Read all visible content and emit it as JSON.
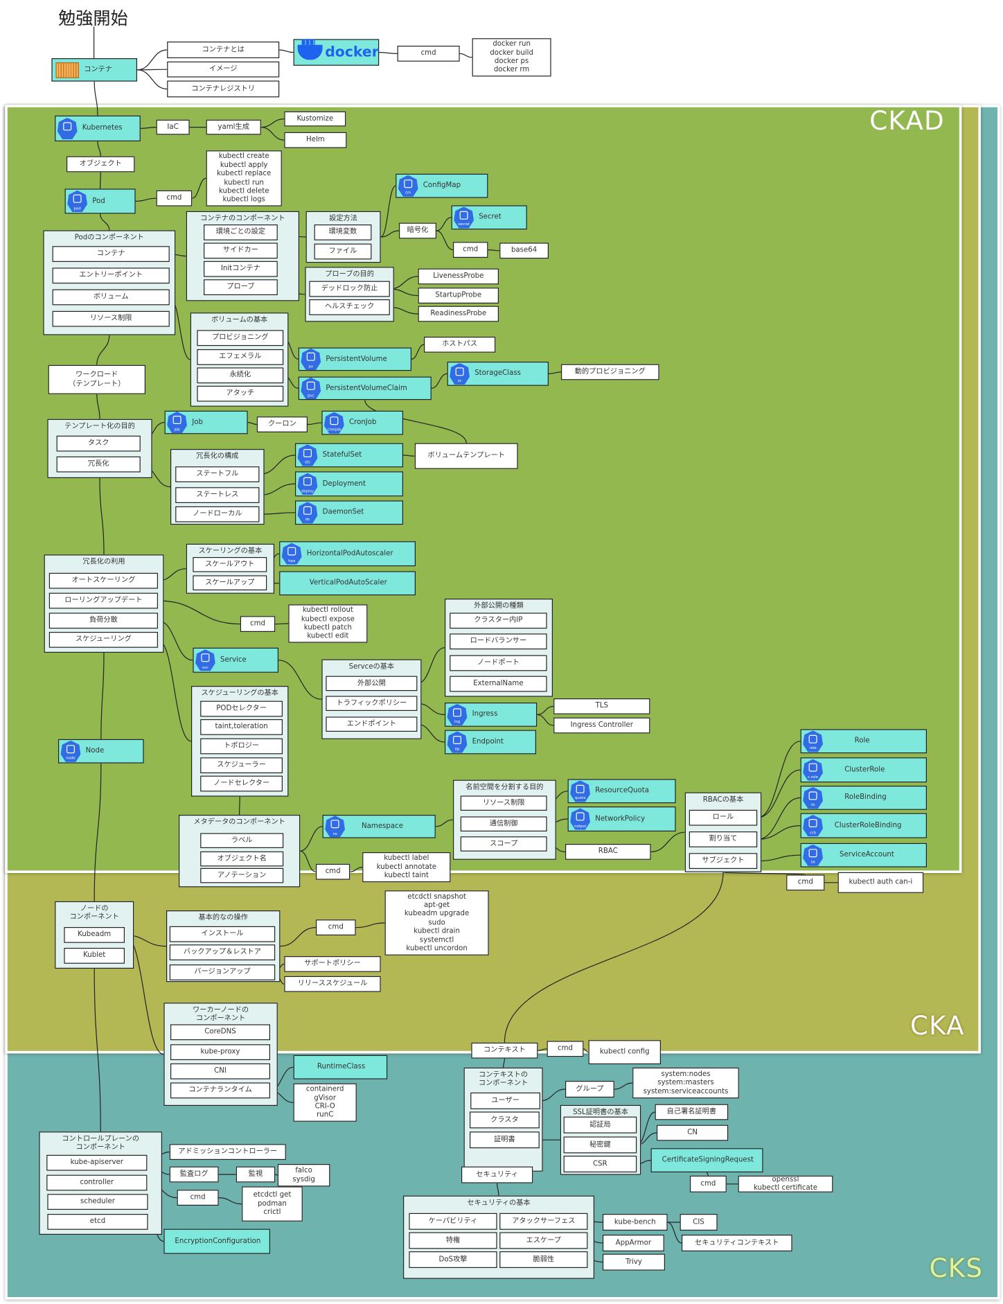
{
  "title": "勉強開始",
  "regions": {
    "ckad": "CKAD",
    "cka": "CKA",
    "cks": "CKS"
  },
  "colors": {
    "ckad": "#92b84f",
    "cka": "#b3b854",
    "cks": "#6fb3af",
    "node_fill": "#7fe8dc",
    "group_fill": "#e2f2f0",
    "k8s_icon": "#326ce5",
    "docker": "#1d63ed"
  },
  "icons": {
    "container": "container-icon",
    "docker": "docker-logo",
    "k8s": "kubernetes-wheel",
    "pod": "pod",
    "cm": "cm",
    "secret": "secret",
    "pv": "pv",
    "pvc": "pvc",
    "sc": "sc",
    "job": "job",
    "cronjob": "cronjob",
    "sts": "sts",
    "deploy": "deploy",
    "ds": "ds",
    "hpa": "hpa",
    "svc": "svc",
    "ingress": "ing",
    "endpoint": "ep",
    "node": "node",
    "ns": "ns",
    "quota": "quota",
    "netpol": "netpol",
    "role": "role",
    "crole": "c.role",
    "rolebind": "rb",
    "crb": "crb",
    "sa": "sa"
  },
  "groups": {
    "podcomp": "Podのコンポーネント",
    "ctrcomp": "コンテナのコンポーネント",
    "setting": "設定方法",
    "probe": "プローブの目的",
    "volbase": "ボリュームの基本",
    "template": "テンプレート化の目的",
    "rdcfg": "冗長化の構成",
    "rduse": "冗長化の利用",
    "scale": "スケーリングの基本",
    "schedbase": "スケジューリングの基本",
    "svcbase": "Servceの基本",
    "exttype": "外部公開の種類",
    "meta": "メタデータのコンポーネント",
    "nssplit": "名前空間を分割する目的",
    "rbac": "RBACの基本",
    "nodecomp": "ノードの\nコンポーネント",
    "ops": "基本的なの操作",
    "worker": "ワーカーノードの\nコンポーネント",
    "ctxcomp": "コンテキストの\nコンポーネント",
    "ssl": "SSL証明書の基本",
    "secbase": "セキュリティの基本",
    "cp": "コントロールプレーンの\nコンポーネント"
  },
  "nodes": {
    "container": "コンテナ",
    "c_what": "コンテナとは",
    "c_image": "イメージ",
    "c_reg": "コンテナレジストリ",
    "docker": "docker",
    "dcmd": "cmd",
    "dcmds": "docker run\ndocker build\ndocker ps\ndocker rm",
    "k8s": "Kubernetes",
    "iac": "IaC",
    "yaml": "yaml生成",
    "kustomize": "Kustomize",
    "helm": "Helm",
    "object": "オブジェクト",
    "pod": "Pod",
    "pcmd": "cmd",
    "pcmds": "kubectl create\nkubectl apply\nkubectl replace\nkubectl run\nkubectl delete\nkubectl logs",
    "pc_container": "コンテナ",
    "pc_entry": "エントリーポイント",
    "pc_volume": "ボリューム",
    "pc_limit": "リソース制限",
    "cc_env": "環境ごとの設定",
    "cc_sidecar": "サイドカー",
    "cc_init": "Initコンテナ",
    "cc_probe": "プローブ",
    "st_env": "環境変数",
    "st_file": "ファイル",
    "cm": "ConfigMap",
    "encrypt": "暗号化",
    "secret": "Secret",
    "scmd": "cmd",
    "base64": "base64",
    "pr_dead": "デッドロック防止",
    "pr_health": "ヘルスチェック",
    "liveness": "LivenessProbe",
    "startup": "StartupProbe",
    "readiness": "ReadinessProbe",
    "vb_prov": "プロビジョニング",
    "vb_eph": "エフェメラル",
    "vb_perm": "永続化",
    "vb_attach": "アタッチ",
    "hostpath": "ホストパス",
    "pv": "PersistentVolume",
    "pvc": "PersistentVolumeClaim",
    "sc": "StorageClass",
    "dynprov": "動的プロビジョニング",
    "workload": "ワークロード\n（テンプレート）",
    "tp_task": "タスク",
    "tp_red": "冗長化",
    "job": "Job",
    "cron": "クーロン",
    "cronjob": "CronJob",
    "rc_sf": "ステートフル",
    "rc_sl": "ステートレス",
    "rc_nl": "ノードローカル",
    "sts": "StatefulSet",
    "deploy": "Deployment",
    "ds": "DaemonSet",
    "voltpl": "ボリュームテンプレート",
    "ru_auto": "オートスケーリング",
    "ru_rolling": "ローリングアップデート",
    "ru_lb": "負荷分散",
    "ru_sched": "スケジューリング",
    "sc_out": "スケールアウト",
    "sc_up": "スケールアップ",
    "hpa": "HorizontalPodAutoscaler",
    "vpa": "VerticalPodAutoScaler",
    "rcmd": "cmd",
    "rcmds": "kubectl rollout\nkubectl expose\nkubectl patch\nkubectl edit",
    "svc": "Service",
    "sb_pod": "PODセレクター",
    "sb_taint": "taint,toleration",
    "sb_topo": "トポロジー",
    "sb_sched": "スケジューラー",
    "sb_nodesel": "ノードセレクター",
    "node": "Node",
    "sv_ext": "外部公開",
    "sv_traffic": "トラフィックポリシー",
    "sv_ep": "エンドポイント",
    "ex_cip": "クラスター内IP",
    "ex_lb": "ロードバランサー",
    "ex_np": "ノードポート",
    "ex_en": "ExternalName",
    "ingress": "Ingress",
    "endpoint": "Endpoint",
    "tls": "TLS",
    "ingctl": "Ingress Controller",
    "md_label": "ラベル",
    "md_name": "オブジェクト名",
    "md_anno": "アノテーション",
    "ns": "Namespace",
    "mcmd": "cmd",
    "mcmds": "kubectl label\nkubectl annotate\nkubectl taint",
    "ns_limit": "リソース制限",
    "ns_net": "通信制御",
    "ns_scope": "スコープ",
    "quota": "ResourceQuota",
    "netpol": "NetworkPolicy",
    "rbacn": "RBAC",
    "rb_role": "ロール",
    "rb_assign": "割り当て",
    "rb_subj": "サブジェクト",
    "role": "Role",
    "crole": "ClusterRole",
    "rolebind": "RoleBinding",
    "crb": "ClusterRoleBinding",
    "sa": "ServiceAccount",
    "authcmd": "cmd",
    "authcmds": "kubectl auth can-i",
    "nc_kubeadm": "Kubeadm",
    "nc_kublet": "Kublet",
    "op_install": "インストール",
    "op_backup": "バックアップ＆レストア",
    "op_ver": "バージョンアップ",
    "ocmd": "cmd",
    "ocmds": "etcdctl snapshot\napt-get\nkubeadm upgrade\nsudo\nkubectl drain\nsystemctl\nkubectl uncordon",
    "support": "サポートポリシー",
    "release": "リリーススケジュール",
    "wk_dns": "CoreDNS",
    "wk_proxy": "kube-proxy",
    "wk_cni": "CNI",
    "wk_rt": "コンテナランタイム",
    "runtimeclass": "RuntimeClass",
    "rtbox": "containerd\ngVisor\nCRI-O\nrunC",
    "ctx": "コンテキスト",
    "ccmd": "cmd",
    "ccmds": "kubectl config",
    "cx_user": "ユーザー",
    "cx_cluster": "クラスタ",
    "cx_cert": "証明書",
    "group": "グループ",
    "sysbox": "system:nodes\nsystem:masters\nsystem:serviceaccounts",
    "ssl_ca": "認証局",
    "ssl_key": "秘密鍵",
    "ssl_csr": "CSR",
    "selfsign": "自己署名証明書",
    "cn": "CN",
    "csr": "CertificateSigningRequest",
    "csrcmd": "cmd",
    "csrcmds": "openssl\nkubectl certificate",
    "security": "セキュリティ",
    "sb_cap": "ケーパビリティ",
    "sb_attack": "アタックサーフェス",
    "sb_priv": "特権",
    "sb_escape": "エスケープ",
    "sb_dos": "DoS攻撃",
    "sb_vuln": "脆弱性",
    "kubebench": "kube-bench",
    "apparmor": "AppArmor",
    "trivy": "Trivy",
    "cis": "CIS",
    "secctx": "セキュリティコンテキスト",
    "cp_api": "kube-apiserver",
    "cp_ctrl": "controller",
    "cp_sched": "scheduler",
    "cp_etcd": "etcd",
    "admission": "アドミッションコントローラー",
    "audit": "監査ログ",
    "monitor": "監視",
    "falco": "falco\nsysdig",
    "cpcmd": "cmd",
    "cpcmds": "etcdctl get\npodman\ncrictl",
    "encconf": "EncryptionConfiguration"
  }
}
